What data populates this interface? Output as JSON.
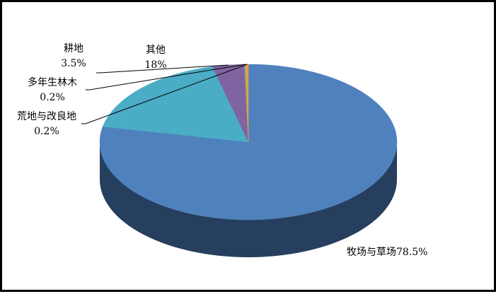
{
  "chart_data": {
    "type": "pie",
    "style": "3d",
    "title": "",
    "categories": [
      "牧场与草场",
      "其他",
      "耕地",
      "多年生林木",
      "荒地与改良地"
    ],
    "values": [
      78.5,
      18,
      3.5,
      0.2,
      0.2
    ],
    "value_labels": [
      "78.5%",
      "18%",
      "3.5%",
      "0.2%",
      "0.2%"
    ],
    "colors": {
      "top": [
        "#4f81bd",
        "#4bacc6",
        "#8064a2",
        "#9bbb59",
        "#f79646"
      ],
      "side": [
        "#263f5e",
        "#2a6e80",
        "#4b3a60",
        "#5c7035",
        "#94581f"
      ]
    },
    "legend": "none"
  }
}
